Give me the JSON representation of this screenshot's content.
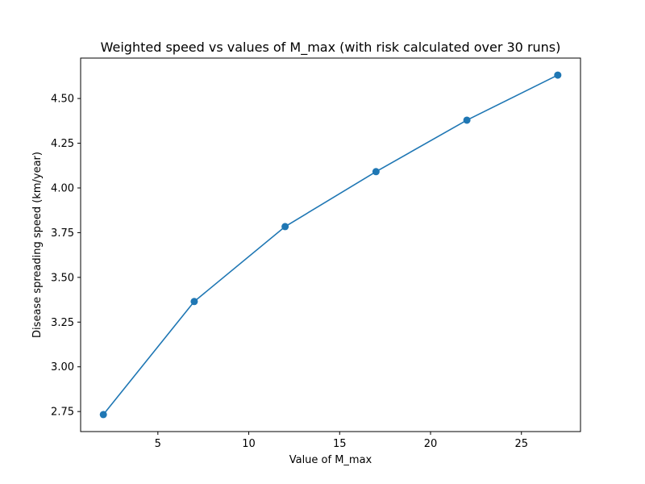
{
  "chart_data": {
    "type": "line",
    "title": "Weighted speed vs values of M_max (with risk calculated over 30 runs)",
    "xlabel": "Value of M_max",
    "ylabel": "Disease spreading speed (km/year)",
    "x": [
      2,
      7,
      12,
      17,
      22,
      27
    ],
    "series": [
      {
        "values": [
          2.733,
          3.365,
          3.784,
          4.091,
          4.379,
          4.631
        ]
      }
    ],
    "xlim": [
      0.75,
      28.25
    ],
    "ylim": [
      2.638,
      4.726
    ],
    "xticks": [
      5,
      10,
      15,
      20,
      25
    ],
    "xtick_labels": [
      "5",
      "10",
      "15",
      "20",
      "25"
    ],
    "yticks": [
      2.75,
      3.0,
      3.25,
      3.5,
      3.75,
      4.0,
      4.25,
      4.5
    ],
    "ytick_labels": [
      "2.75",
      "3.00",
      "3.25",
      "3.50",
      "3.75",
      "4.00",
      "4.25",
      "4.50"
    ],
    "grid": false,
    "markers": "circle",
    "colors": {
      "series": "#1f77b4"
    }
  }
}
